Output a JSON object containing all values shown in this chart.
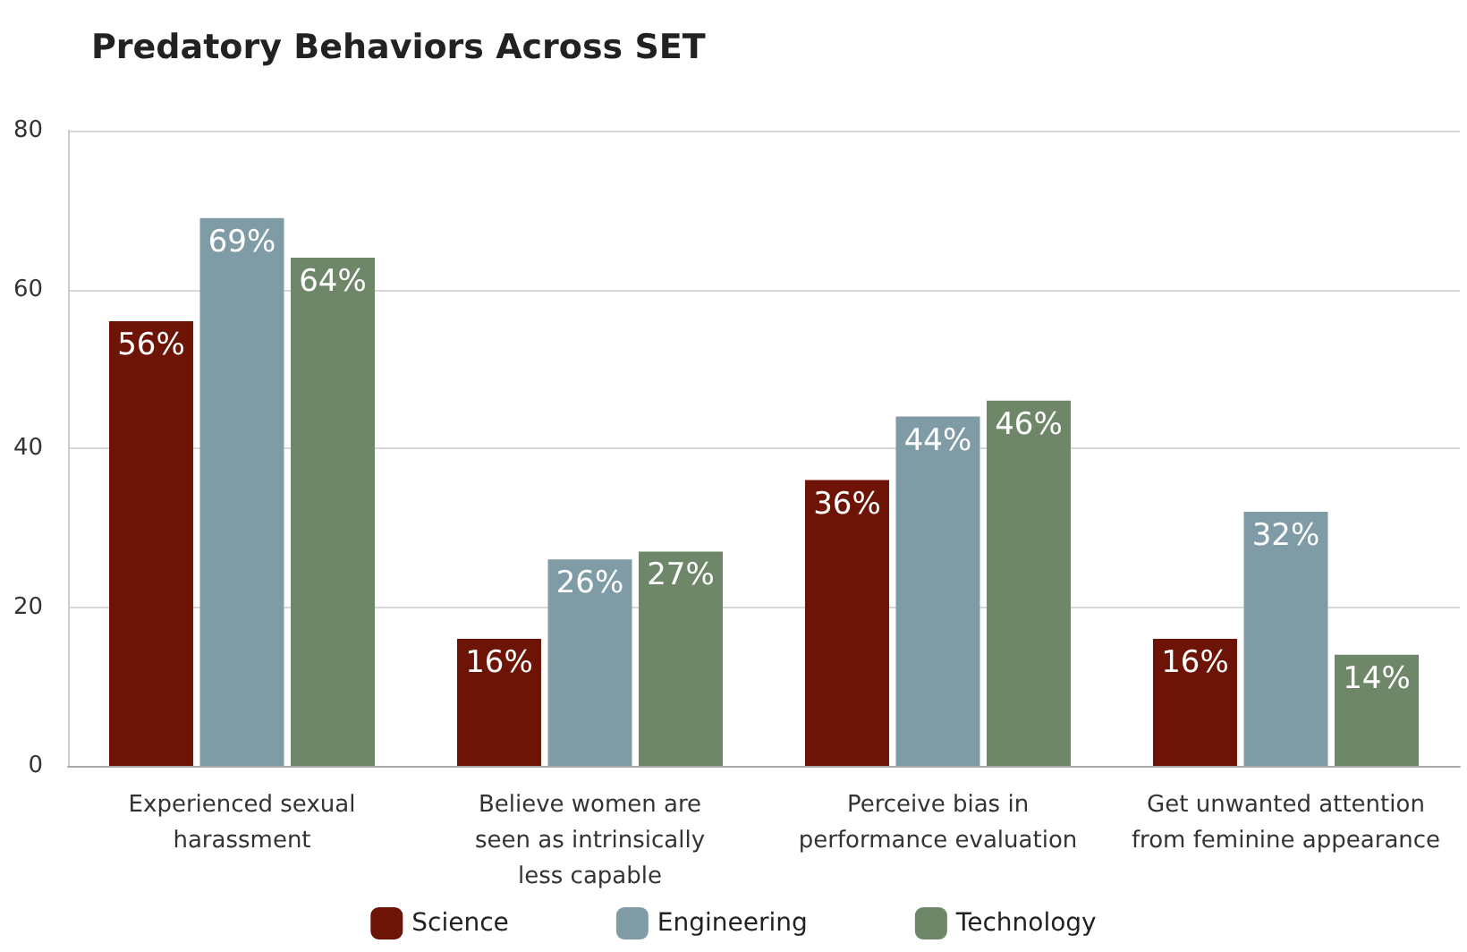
{
  "chart_data": {
    "type": "bar",
    "title": "Predatory Behaviors Across SET",
    "categories": [
      "Experienced sexual\nharassment",
      "Believe women are\nseen as intrinsically\nless capable",
      "Perceive bias in\nperformance evaluation",
      "Get unwanted attention\nfrom feminine appearance"
    ],
    "series": [
      {
        "name": "Science",
        "color": "#6e1406",
        "values": [
          56,
          16,
          36,
          16
        ],
        "value_labels": [
          "56%",
          "16%",
          "36%",
          "16%"
        ]
      },
      {
        "name": "Engineering",
        "color": "#7f9ca6",
        "values": [
          69,
          26,
          44,
          32
        ],
        "value_labels": [
          "69%",
          "26%",
          "44%",
          "32%"
        ]
      },
      {
        "name": "Technology",
        "color": "#6e8769",
        "values": [
          64,
          27,
          46,
          14
        ],
        "value_labels": [
          "64%",
          "27%",
          "46%",
          "14%"
        ]
      }
    ],
    "ylim": [
      0,
      80
    ],
    "yticks": [
      0,
      20,
      40,
      60,
      80
    ],
    "grid": "y",
    "legend": "bottom"
  }
}
